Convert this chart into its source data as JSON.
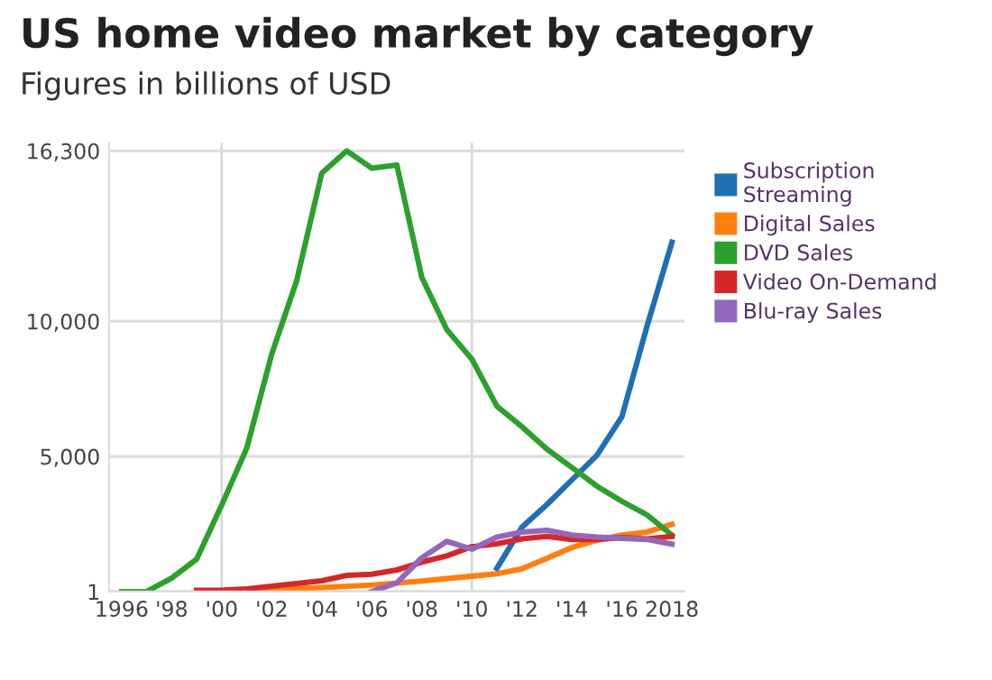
{
  "chart_data": {
    "type": "line",
    "title": "US home video market by category",
    "subtitle": "Figures in billions of USD",
    "xlim": [
      1995.5,
      2018.5
    ],
    "xticks": [
      {
        "value": 1996,
        "label": "1996"
      },
      {
        "value": 1998,
        "label": "'98"
      },
      {
        "value": 2000,
        "label": "'00"
      },
      {
        "value": 2002,
        "label": "'02"
      },
      {
        "value": 2004,
        "label": "'04"
      },
      {
        "value": 2006,
        "label": "'06"
      },
      {
        "value": 2008,
        "label": "'08"
      },
      {
        "value": 2010,
        "label": "'10"
      },
      {
        "value": 2012,
        "label": "'12"
      },
      {
        "value": 2014,
        "label": "'14"
      },
      {
        "value": 2016,
        "label": "'16"
      },
      {
        "value": 2018,
        "label": "2018"
      }
    ],
    "ylim": [
      0,
      16600
    ],
    "yticks": [
      1,
      {
        "value": 5000,
        "label": "5,000"
      },
      {
        "value": 10000,
        "label": "10,000"
      },
      {
        "value": 16300,
        "label": "16,300"
      }
    ],
    "grid": "y",
    "legend": "right",
    "marker": "none",
    "line_style": "solid",
    "ref_lines": [
      {
        "axis": "x",
        "value": 2000,
        "label": null,
        "color": "#d9d9d9"
      },
      {
        "axis": "x",
        "value": 2010,
        "label": null,
        "color": "#d9d9d9"
      }
    ],
    "series": [
      {
        "name": "Subscription\nStreaming",
        "color": "#1f6fb4",
        "x": [
          2011,
          2012,
          2013,
          2014,
          2015,
          2016,
          2017,
          2018
        ],
        "values": [
          860,
          2380,
          3220,
          4130,
          5040,
          6470,
          9810,
          12920
        ]
      },
      {
        "name": "Digital Sales",
        "color": "#ff7f0e",
        "x": [
          2000,
          2002,
          2004,
          2006,
          2008,
          2010,
          2011,
          2012,
          2013,
          2014,
          2015,
          2016,
          2017,
          2018
        ],
        "values": [
          30,
          80,
          150,
          240,
          390,
          570,
          660,
          840,
          1230,
          1630,
          1900,
          2090,
          2200,
          2490
        ]
      },
      {
        "name": "DVD Sales",
        "color": "#2ca02c",
        "x": [
          1996,
          1997,
          1998,
          1999,
          2000,
          2001,
          2002,
          2003,
          2004,
          2005,
          2006,
          2007,
          2008,
          2009,
          2010,
          2011,
          2012,
          2013,
          2014,
          2015,
          2016,
          2017,
          2018
        ],
        "values": [
          0,
          0,
          500,
          1200,
          3200,
          5300,
          8780,
          11510,
          15480,
          16300,
          15660,
          15780,
          11620,
          9690,
          8600,
          6860,
          6100,
          5270,
          4590,
          3900,
          3340,
          2840,
          2090
        ]
      },
      {
        "name": "Video On-Demand",
        "color": "#d62728",
        "x": [
          1999,
          2000,
          2001,
          2002,
          2003,
          2004,
          2005,
          2006,
          2007,
          2008,
          2009,
          2010,
          2011,
          2012,
          2013,
          2014,
          2015,
          2016,
          2017,
          2018
        ],
        "values": [
          50,
          50,
          100,
          200,
          300,
          400,
          600,
          640,
          800,
          1090,
          1320,
          1660,
          1770,
          1950,
          2040,
          1930,
          1930,
          2000,
          1950,
          2040
        ]
      },
      {
        "name": "Blu-ray Sales",
        "color": "#9467bd",
        "x": [
          2006,
          2007,
          2008,
          2009,
          2010,
          2011,
          2012,
          2013,
          2014,
          2015,
          2016,
          2017,
          2018
        ],
        "values": [
          0,
          320,
          1250,
          1860,
          1570,
          2020,
          2200,
          2270,
          2090,
          2020,
          1970,
          1930,
          1750
        ]
      }
    ]
  }
}
